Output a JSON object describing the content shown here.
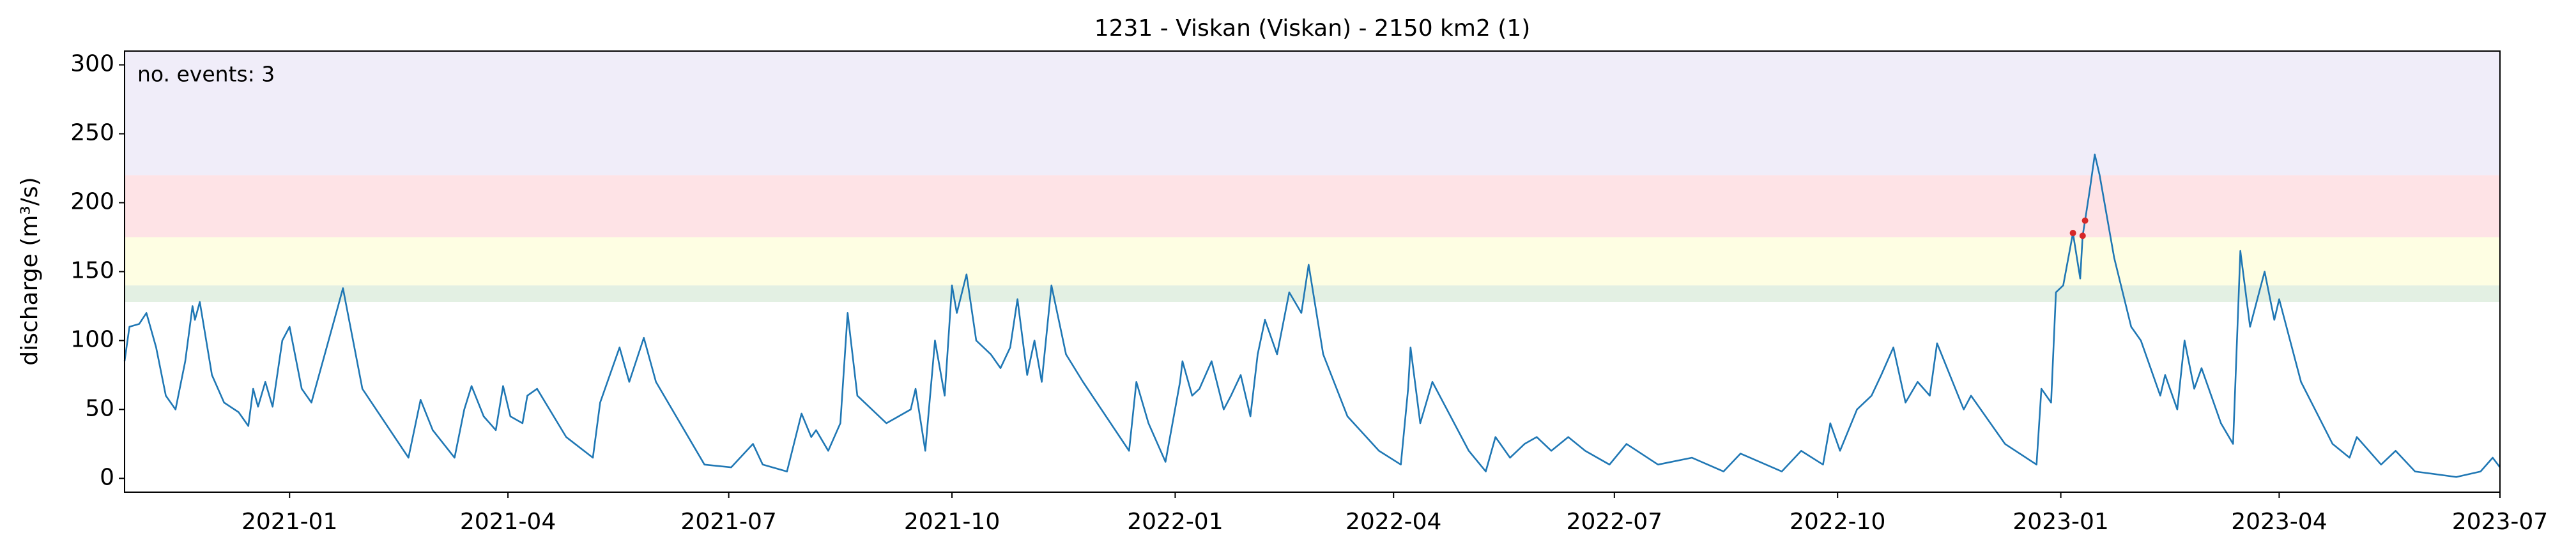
{
  "chart_data": {
    "type": "line",
    "title": "1231 - Viskan (Viskan) - 2150 km2 (1)",
    "ylabel": "discharge (m³/s)",
    "annotation": "no. events: 3",
    "annotation_color": "#d62728",
    "xlim": [
      "2020-10-25",
      "2023-07-01"
    ],
    "xticks": [
      "2021-01",
      "2021-04",
      "2021-07",
      "2021-10",
      "2022-01",
      "2022-04",
      "2022-07",
      "2022-10",
      "2023-01",
      "2023-04",
      "2023-07"
    ],
    "ylim": [
      -10,
      310
    ],
    "yticks": [
      0,
      50,
      100,
      150,
      200,
      250,
      300
    ],
    "bands": [
      {
        "range": [
          128,
          140
        ],
        "color": "#e3f0e3"
      },
      {
        "range": [
          140,
          175
        ],
        "color": "#fefee3"
      },
      {
        "range": [
          175,
          220
        ],
        "color": "#fee3e6"
      },
      {
        "range": [
          220,
          310
        ],
        "color": "#f0edf9"
      }
    ],
    "x": [
      "2020-10-25",
      "2020-10-27",
      "2020-10-31",
      "2020-11-03",
      "2020-11-07",
      "2020-11-11",
      "2020-11-15",
      "2020-11-19",
      "2020-11-22",
      "2020-11-23",
      "2020-11-25",
      "2020-11-30",
      "2020-12-05",
      "2020-12-11",
      "2020-12-15",
      "2020-12-17",
      "2020-12-19",
      "2020-12-22",
      "2020-12-25",
      "2020-12-29",
      "2021-01-01",
      "2021-01-06",
      "2021-01-10",
      "2021-01-21",
      "2021-01-23",
      "2021-01-31",
      "2021-02-19",
      "2021-02-24",
      "2021-03-01",
      "2021-03-10",
      "2021-03-14",
      "2021-03-17",
      "2021-03-22",
      "2021-03-27",
      "2021-03-30",
      "2021-04-02",
      "2021-04-07",
      "2021-04-09",
      "2021-04-13",
      "2021-04-25",
      "2021-05-06",
      "2021-05-09",
      "2021-05-13",
      "2021-05-17",
      "2021-05-21",
      "2021-05-27",
      "2021-06-01",
      "2021-06-21",
      "2021-07-02",
      "2021-07-11",
      "2021-07-15",
      "2021-07-25",
      "2021-07-31",
      "2021-08-04",
      "2021-08-06",
      "2021-08-11",
      "2021-08-16",
      "2021-08-19",
      "2021-08-23",
      "2021-09-04",
      "2021-09-14",
      "2021-09-16",
      "2021-09-20",
      "2021-09-24",
      "2021-09-28",
      "2021-10-01",
      "2021-10-03",
      "2021-10-07",
      "2021-10-11",
      "2021-10-17",
      "2021-10-21",
      "2021-10-25",
      "2021-10-28",
      "2021-11-01",
      "2021-11-04",
      "2021-11-07",
      "2021-11-11",
      "2021-11-17",
      "2021-11-24",
      "2021-12-13",
      "2021-12-16",
      "2021-12-21",
      "2021-12-28",
      "2022-01-03",
      "2022-01-04",
      "2022-01-08",
      "2022-01-11",
      "2022-01-16",
      "2022-01-21",
      "2022-01-24",
      "2022-01-28",
      "2022-02-01",
      "2022-02-04",
      "2022-02-07",
      "2022-02-12",
      "2022-02-17",
      "2022-02-22",
      "2022-02-25",
      "2022-03-03",
      "2022-03-13",
      "2022-03-26",
      "2022-04-04",
      "2022-04-07",
      "2022-04-08",
      "2022-04-12",
      "2022-04-17",
      "2022-05-02",
      "2022-05-09",
      "2022-05-13",
      "2022-05-19",
      "2022-05-25",
      "2022-05-30",
      "2022-06-05",
      "2022-06-12",
      "2022-06-19",
      "2022-06-29",
      "2022-07-06",
      "2022-07-19",
      "2022-08-02",
      "2022-08-15",
      "2022-08-22",
      "2022-09-08",
      "2022-09-16",
      "2022-09-25",
      "2022-09-28",
      "2022-10-02",
      "2022-10-09",
      "2022-10-15",
      "2022-10-19",
      "2022-10-24",
      "2022-10-29",
      "2022-11-03",
      "2022-11-08",
      "2022-11-11",
      "2022-11-22",
      "2022-11-25",
      "2022-12-09",
      "2022-12-22",
      "2022-12-24",
      "2022-12-28",
      "2022-12-30",
      "2023-01-02",
      "2023-01-06",
      "2023-01-09",
      "2023-01-10",
      "2023-01-11",
      "2023-01-13",
      "2023-01-15",
      "2023-01-17",
      "2023-01-23",
      "2023-01-30",
      "2023-02-03",
      "2023-02-11",
      "2023-02-13",
      "2023-02-18",
      "2023-02-21",
      "2023-02-25",
      "2023-02-28",
      "2023-03-08",
      "2023-03-13",
      "2023-03-16",
      "2023-03-20",
      "2023-03-26",
      "2023-03-30",
      "2023-04-01",
      "2023-04-10",
      "2023-04-23",
      "2023-04-30",
      "2023-05-03",
      "2023-05-13",
      "2023-05-19",
      "2023-05-27",
      "2023-06-13",
      "2023-06-23",
      "2023-06-28",
      "2023-07-01"
    ],
    "series": [
      {
        "color": "#1f77b4",
        "values": [
          85,
          110,
          112,
          120,
          95,
          60,
          50,
          85,
          125,
          115,
          128,
          75,
          55,
          48,
          38,
          65,
          52,
          70,
          52,
          100,
          110,
          65,
          55,
          125,
          138,
          65,
          15,
          57,
          35,
          15,
          50,
          67,
          45,
          35,
          67,
          45,
          40,
          60,
          65,
          30,
          15,
          55,
          75,
          95,
          70,
          102,
          70,
          10,
          8,
          25,
          10,
          5,
          47,
          30,
          35,
          20,
          40,
          120,
          60,
          40,
          50,
          65,
          20,
          100,
          60,
          140,
          120,
          148,
          100,
          90,
          80,
          95,
          130,
          75,
          100,
          70,
          140,
          90,
          70,
          20,
          70,
          40,
          12,
          70,
          85,
          60,
          65,
          85,
          50,
          60,
          75,
          45,
          90,
          115,
          90,
          135,
          120,
          155,
          90,
          45,
          20,
          10,
          65,
          95,
          40,
          70,
          20,
          5,
          30,
          15,
          25,
          30,
          20,
          30,
          20,
          10,
          25,
          10,
          15,
          5,
          18,
          5,
          20,
          10,
          40,
          20,
          50,
          60,
          75,
          95,
          55,
          70,
          60,
          98,
          50,
          60,
          25,
          10,
          65,
          55,
          135,
          140,
          178,
          145,
          176,
          187,
          210,
          235,
          220,
          160,
          110,
          100,
          60,
          75,
          50,
          100,
          65,
          80,
          40,
          25,
          165,
          110,
          150,
          115,
          130,
          70,
          25,
          15,
          30,
          10,
          20,
          5,
          1,
          5,
          15,
          8
        ]
      }
    ],
    "events": {
      "color": "#d62728",
      "x": [
        "2023-01-06",
        "2023-01-10",
        "2023-01-11"
      ],
      "values": [
        178,
        176,
        187
      ]
    }
  }
}
